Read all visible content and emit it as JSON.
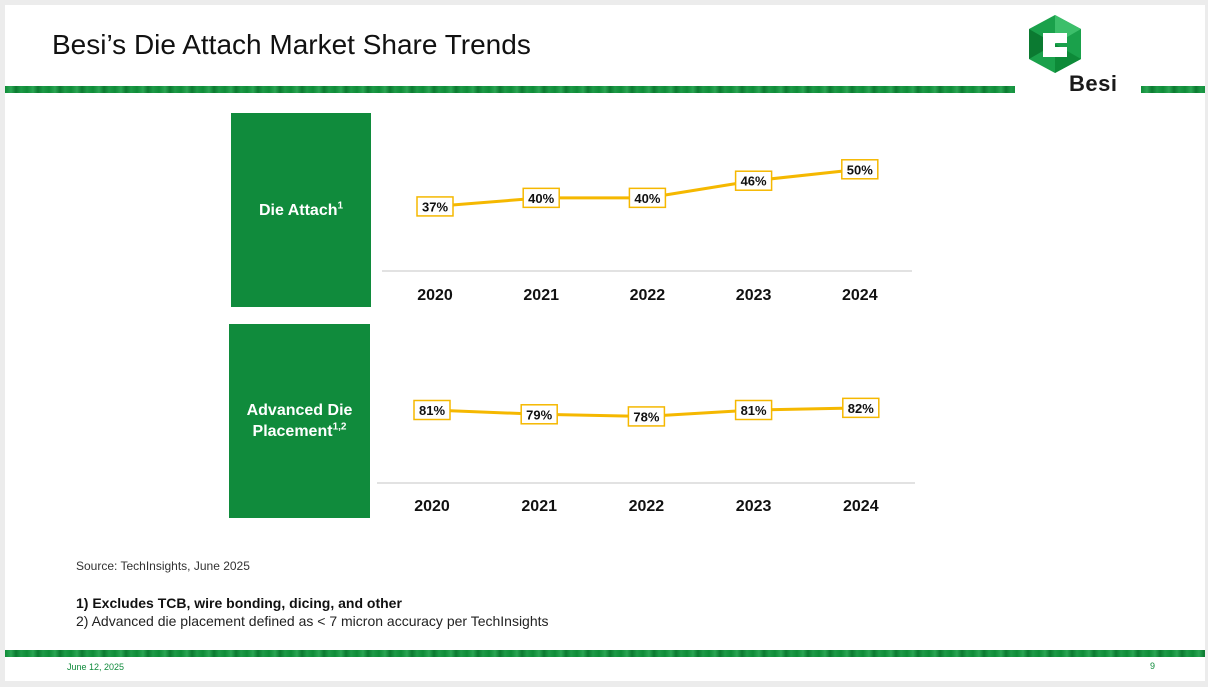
{
  "slide": {
    "title": "Besi’s Die Attach Market Share Trends",
    "logo_text": "Besi",
    "source": "Source: TechInsights, June 2025",
    "footnote1": "1) Excludes TCB, wire bonding, dicing, and other",
    "footnote2": "2) Advanced die placement defined as < 7 micron accuracy per TechInsights",
    "date": "June 12, 2025",
    "page_number": "9"
  },
  "colors": {
    "brand_green": "#108b3c",
    "line": "#f5b800",
    "axis": "#d9d9d9"
  },
  "chart_data": [
    {
      "type": "line",
      "title": "Die Attach",
      "title_sup": "1",
      "categories": [
        "2020",
        "2021",
        "2022",
        "2023",
        "2024"
      ],
      "values": [
        37,
        40,
        40,
        46,
        50
      ],
      "labels": [
        "37%",
        "40%",
        "40%",
        "46%",
        "50%"
      ],
      "unit": "%",
      "ylim": [
        20,
        55
      ],
      "legend": "none"
    },
    {
      "type": "line",
      "title": "Advanced Die Placement",
      "title_sup": "1,2",
      "categories": [
        "2020",
        "2021",
        "2022",
        "2023",
        "2024"
      ],
      "values": [
        81,
        79,
        78,
        81,
        82
      ],
      "labels": [
        "81%",
        "79%",
        "78%",
        "81%",
        "82%"
      ],
      "unit": "%",
      "ylim": [
        60,
        95
      ],
      "legend": "none"
    }
  ]
}
